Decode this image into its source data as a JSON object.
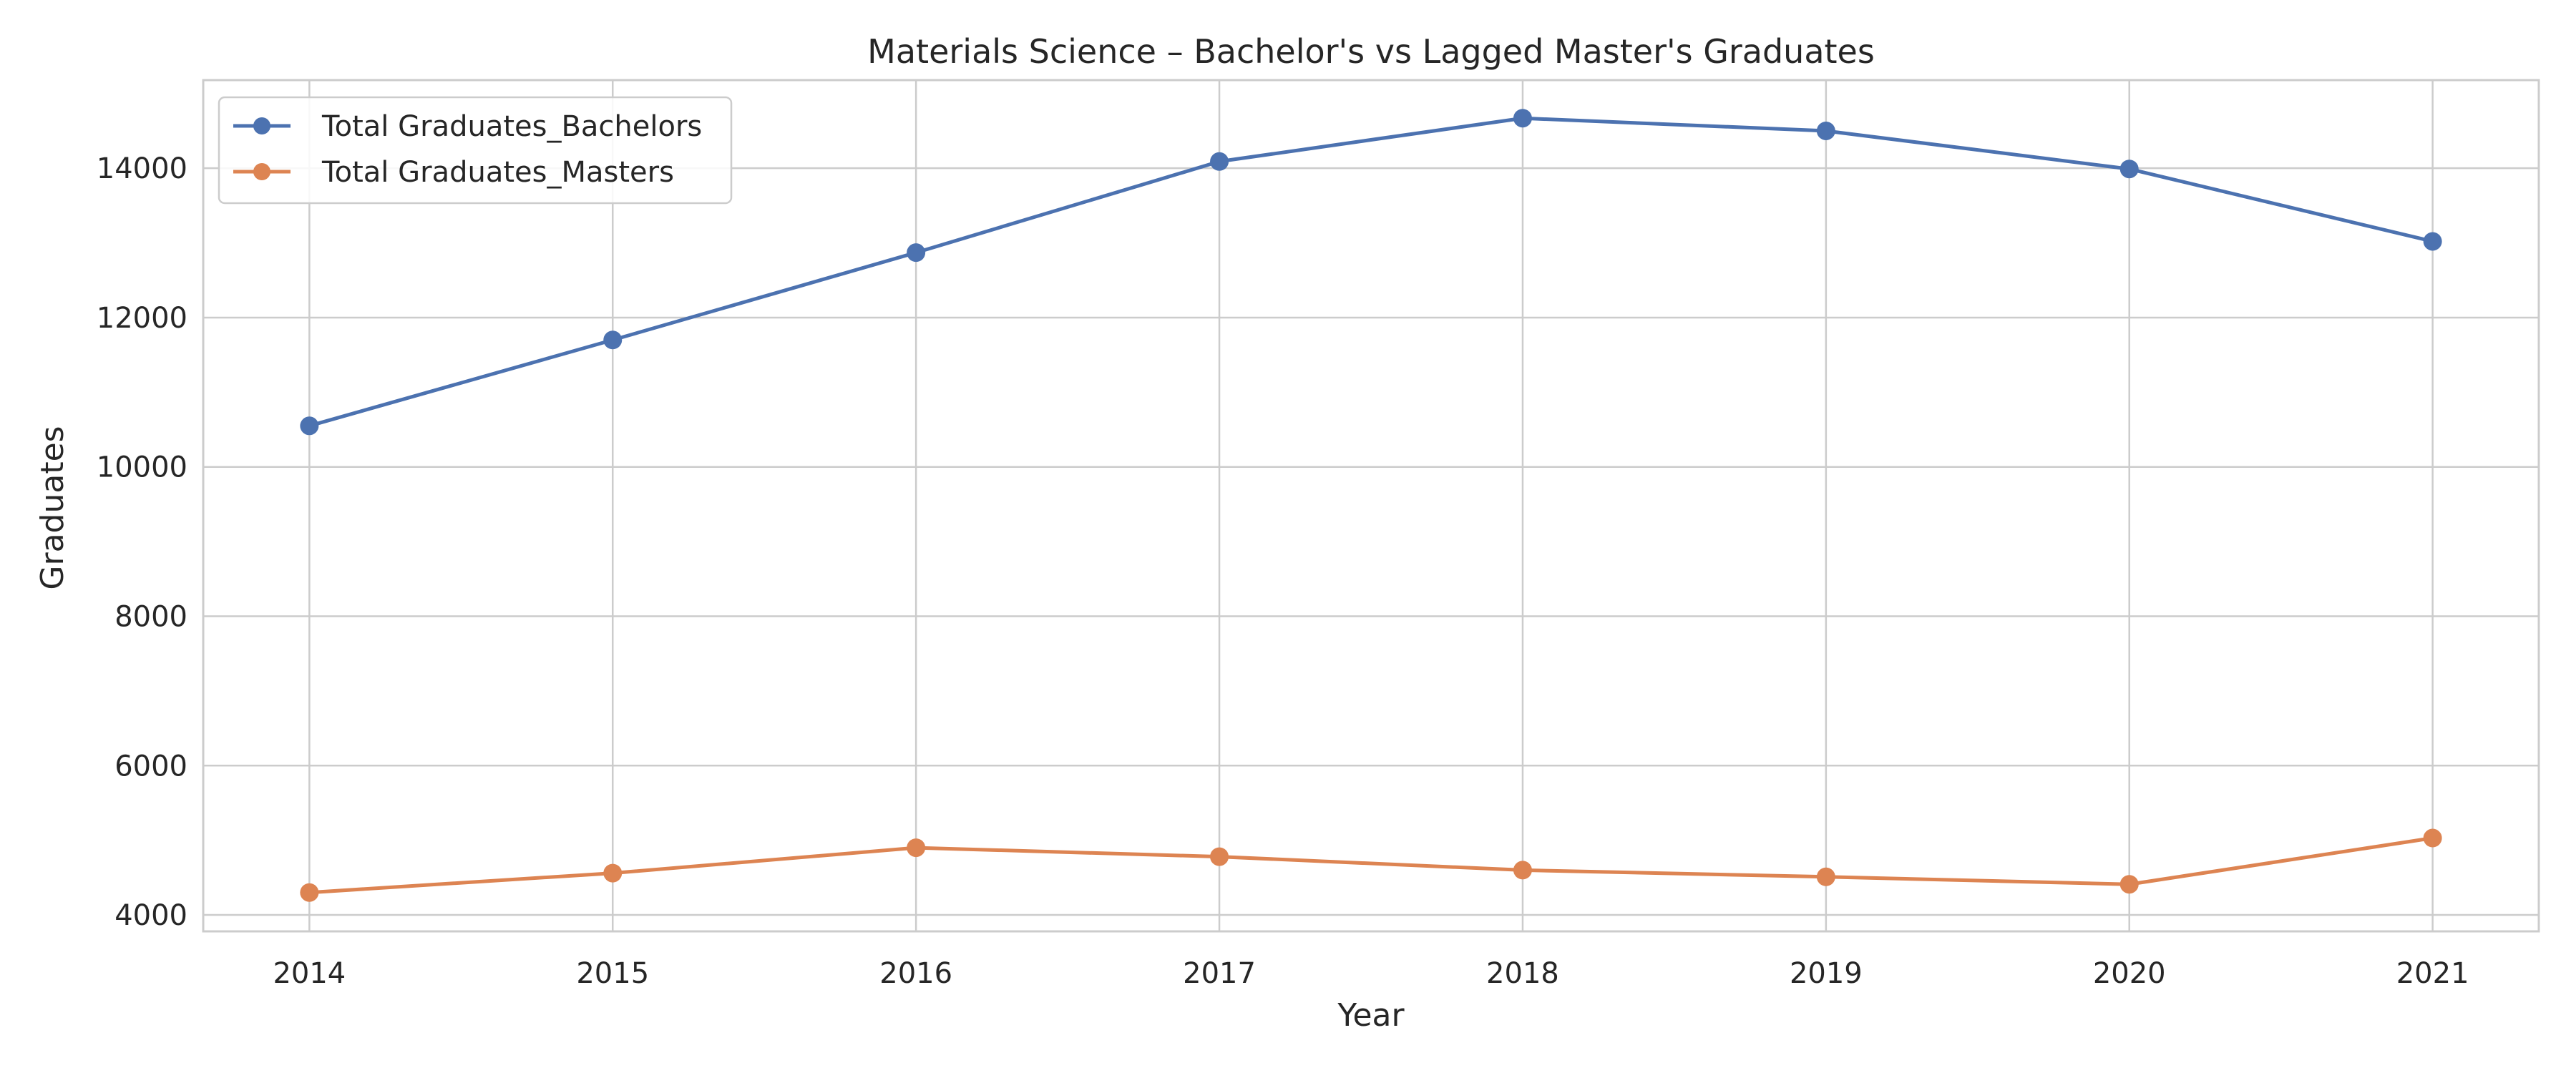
{
  "chart_data": {
    "type": "line",
    "title": "Materials Science – Bachelor's vs Lagged Master's Graduates",
    "xlabel": "Year",
    "ylabel": "Graduates",
    "x": [
      2014,
      2015,
      2016,
      2017,
      2018,
      2019,
      2020,
      2021
    ],
    "xlim": [
      2013.65,
      2021.35
    ],
    "ylim": [
      3780,
      15180
    ],
    "yticks": [
      4000,
      6000,
      8000,
      10000,
      12000,
      14000
    ],
    "grid": true,
    "legend_position": "top-left",
    "series": [
      {
        "name": "Total Graduates_Bachelors",
        "color": "#4c72b0",
        "marker": "circle",
        "values": [
          10550,
          11700,
          12870,
          14090,
          14670,
          14500,
          13990,
          13020
        ]
      },
      {
        "name": "Total Graduates_Masters",
        "color": "#dd8452",
        "marker": "circle",
        "values": [
          4300,
          4560,
          4900,
          4780,
          4600,
          4510,
          4410,
          5030
        ]
      }
    ]
  }
}
